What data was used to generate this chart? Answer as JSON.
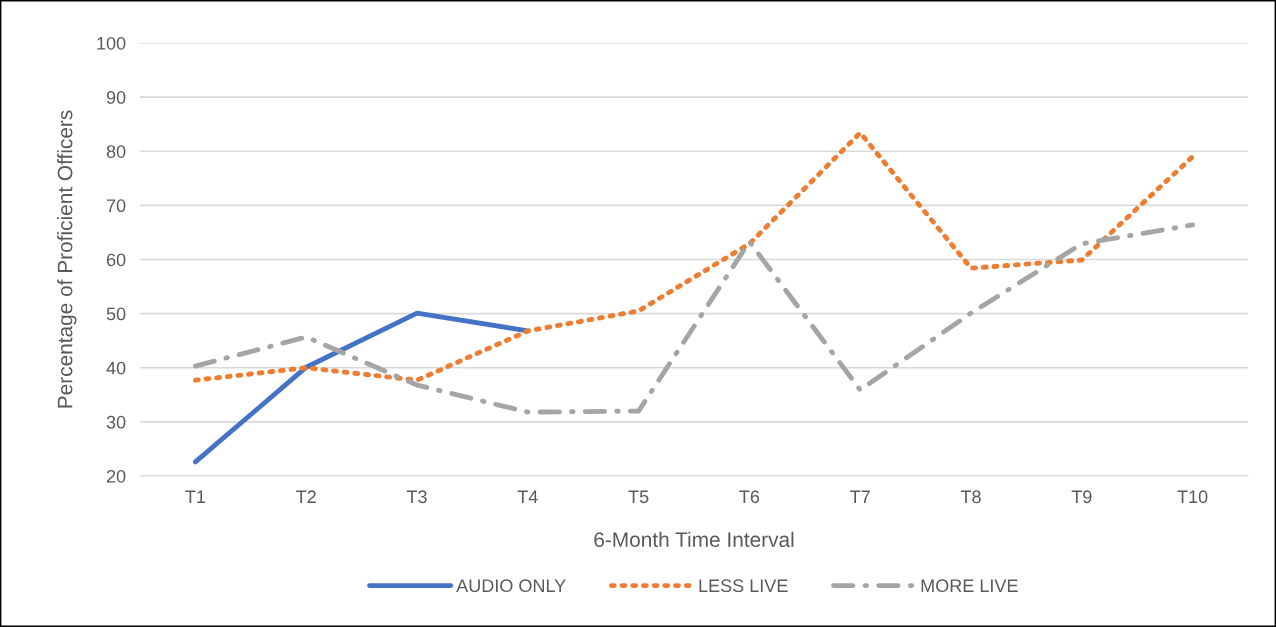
{
  "chart_data": {
    "type": "line",
    "xlabel": "6-Month Time Interval",
    "ylabel": "Percentage of Proficient Officers",
    "categories": [
      "T1",
      "T2",
      "T3",
      "T4",
      "T5",
      "T6",
      "T7",
      "T8",
      "T9",
      "T10"
    ],
    "series": [
      {
        "name": "AUDIO ONLY",
        "color": "#4472c4",
        "line_style": "solid",
        "values": [
          22.6,
          40.1,
          50.1,
          46.8,
          null,
          null,
          null,
          null,
          null,
          null
        ]
      },
      {
        "name": "LESS LIVE",
        "color": "#ed7d31",
        "line_style": "dotted",
        "values": [
          37.7,
          40.0,
          37.7,
          46.8,
          50.5,
          62.9,
          83.4,
          58.4,
          59.9,
          79.0
        ]
      },
      {
        "name": "MORE LIVE",
        "color": "#a5a5a5",
        "line_style": "dashdot",
        "values": [
          40.3,
          45.7,
          36.8,
          31.8,
          32.0,
          63.3,
          35.9,
          50.1,
          62.9,
          66.4
        ]
      }
    ],
    "ylim": [
      20,
      100
    ],
    "yticks": [
      20,
      30,
      40,
      50,
      60,
      70,
      80,
      90,
      100
    ],
    "grid": "y",
    "legend": "bottom",
    "marker": "none"
  }
}
